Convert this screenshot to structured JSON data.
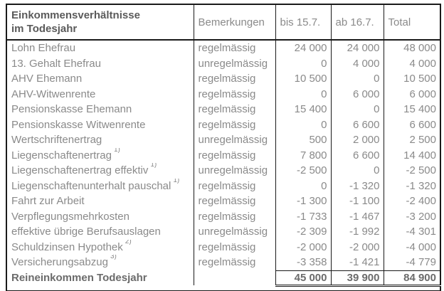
{
  "table": {
    "header": {
      "col_income_line1": "Einkommensverhältnisse",
      "col_income_line2": "im Todesjahr",
      "col_remarks": "Bemerkungen",
      "col_until": "bis 15.7.",
      "col_from": "ab 16.7.",
      "col_total": "Total"
    },
    "rows": [
      {
        "label": "Lohn Ehefrau",
        "sup": "",
        "remark": "regelmässig",
        "bis": "24 000",
        "ab": "24 000",
        "total": "48 000"
      },
      {
        "label": "13. Gehalt Ehefrau",
        "sup": "",
        "remark": "unregelmässig",
        "bis": "0",
        "ab": "4 000",
        "total": "4 000"
      },
      {
        "label": "AHV Ehemann",
        "sup": "",
        "remark": "regelmässig",
        "bis": "10 500",
        "ab": "0",
        "total": "10 500"
      },
      {
        "label": "AHV-Witwenrente",
        "sup": "",
        "remark": "regelmässig",
        "bis": "0",
        "ab": "6 000",
        "total": "6 000"
      },
      {
        "label": "Pensionskasse Ehemann",
        "sup": "",
        "remark": "regelmässig",
        "bis": "15 400",
        "ab": "0",
        "total": "15 400"
      },
      {
        "label": "Pensionskasse Witwenrente",
        "sup": "",
        "remark": "regelmässig",
        "bis": "0",
        "ab": "6 600",
        "total": "6 600"
      },
      {
        "label": "Wertschriftenertrag",
        "sup": "",
        "remark": "unregelmässig",
        "bis": "500",
        "ab": "2 000",
        "total": "2 500"
      },
      {
        "label": "Liegenschaftenertrag",
        "sup": "1)",
        "remark": "regelmässig",
        "bis": "7 800",
        "ab": "6 600",
        "total": "14 400"
      },
      {
        "label": "Liegenschaftenertrag effektiv",
        "sup": "1)",
        "remark": "unregelmässig",
        "bis": "-2 500",
        "ab": "0",
        "total": "-2 500"
      },
      {
        "label": "Liegenschaftenunterhalt pauschal",
        "sup": "1)",
        "remark": "regelmässig",
        "bis": "0",
        "ab": "-1 320",
        "total": "-1 320"
      },
      {
        "label": "Fahrt zur Arbeit",
        "sup": "",
        "remark": "regelmässig",
        "bis": "-1 300",
        "ab": "-1 100",
        "total": "-2 400"
      },
      {
        "label": "Verpflegungsmehrkosten",
        "sup": "",
        "remark": "regelmässig",
        "bis": "-1 733",
        "ab": "-1 467",
        "total": "-3 200"
      },
      {
        "label": "effektive übrige Berufsauslagen",
        "sup": "",
        "remark": "unregelmässig",
        "bis": "-2 309",
        "ab": "-1 992",
        "total": "-4 301"
      },
      {
        "label": "Schuldzinsen Hypothek",
        "sup": "2)",
        "remark": "regelmässig",
        "bis": "-2 000",
        "ab": "-2 000",
        "total": "-4 000"
      },
      {
        "label": "Versicherungsabzug",
        "sup": "3)",
        "remark": "regelmässig",
        "bis": "-3 358",
        "ab": "-1 421",
        "total": "-4 779"
      }
    ],
    "totals": {
      "label": "Reineinkommen Todesjahr",
      "remark": "",
      "bis": "45 000",
      "ab": "39 900",
      "total": "84 900"
    }
  },
  "colors": {
    "body_text": "#8a8a8a",
    "bold_text": "#5a5a5a",
    "totals_text": "#6b6b6b",
    "border": "#1a1a1a",
    "background": "#ffffff"
  }
}
